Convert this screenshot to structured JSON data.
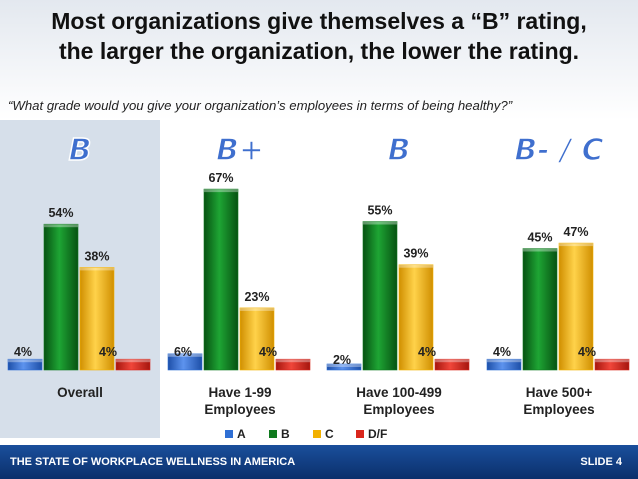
{
  "title": [
    "Most organizations give themselves a “B” rating,",
    "the larger the organization, the lower the rating."
  ],
  "question": "“What grade would you give your organization’s employees in terms of being healthy?”",
  "footer": {
    "left": "THE STATE OF WORKPLACE WELLNESS IN AMERICA",
    "right": "SLIDE 4"
  },
  "colors": {
    "A": "#2f6fd4",
    "B": "#0f7a1e",
    "C": "#f2b100",
    "D/F": "#d9261c",
    "highlight": "#d6dfea",
    "grade": "#3f6fce"
  },
  "chart_data": {
    "type": "bar",
    "ylim": [
      0,
      70
    ],
    "legend": "bottom",
    "series_names": [
      "A",
      "B",
      "C",
      "D/F"
    ],
    "groups": [
      {
        "label": [
          "Overall"
        ],
        "grade": "B",
        "values": [
          4,
          54,
          38,
          4
        ],
        "labels": [
          "4%",
          "54%",
          "38%",
          "4%"
        ],
        "highlighted": true
      },
      {
        "label": [
          "Have 1-99",
          "Employees"
        ],
        "grade": "B+",
        "values": [
          6,
          67,
          23,
          4
        ],
        "labels": [
          "6%",
          "67%",
          "23%",
          "4%"
        ],
        "highlighted": false
      },
      {
        "label": [
          "Have 100-499",
          "Employees"
        ],
        "grade": "B",
        "values": [
          2,
          55,
          39,
          4
        ],
        "labels": [
          "2%",
          "55%",
          "39%",
          "4%"
        ],
        "highlighted": false
      },
      {
        "label": [
          "Have 500+",
          "Employees"
        ],
        "grade": "B- / C",
        "values": [
          4,
          45,
          47,
          4
        ],
        "labels": [
          "4%",
          "45%",
          "47%",
          "4%"
        ],
        "highlighted": false
      }
    ]
  }
}
